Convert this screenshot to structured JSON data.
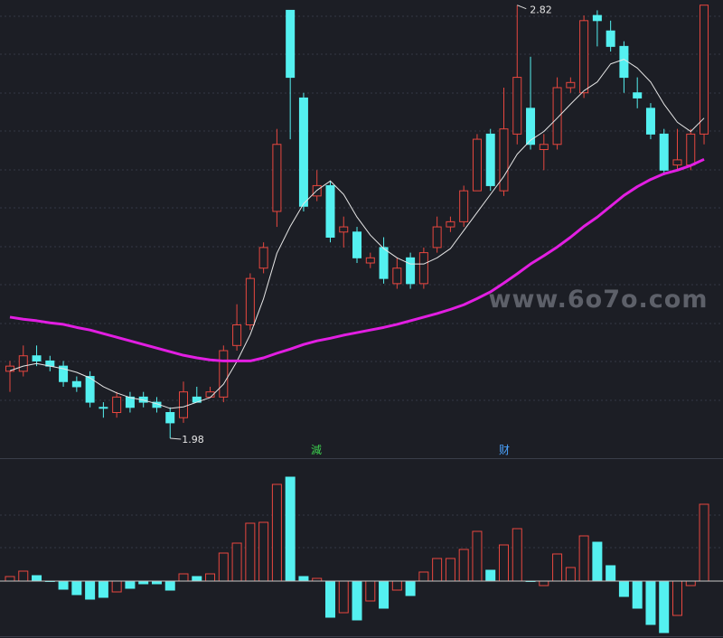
{
  "chart_data": {
    "type": "candlestick",
    "open": [
      2.11,
      2.11,
      2.14,
      2.13,
      2.12,
      2.09,
      2.1,
      2.04,
      2.03,
      2.06,
      2.06,
      2.05,
      2.03,
      2.02,
      2.06,
      2.06,
      2.06,
      2.16,
      2.2,
      2.31,
      2.42,
      2.81,
      2.64,
      2.45,
      2.47,
      2.38,
      2.38,
      2.32,
      2.35,
      2.28,
      2.33,
      2.28,
      2.35,
      2.39,
      2.4,
      2.46,
      2.57,
      2.46,
      2.57,
      2.62,
      2.54,
      2.55,
      2.66,
      2.65,
      2.8,
      2.77,
      2.74,
      2.65,
      2.62,
      2.57,
      2.51,
      2.51,
      2.57
    ],
    "high": [
      2.13,
      2.16,
      2.16,
      2.14,
      2.13,
      2.1,
      2.11,
      2.05,
      2.07,
      2.07,
      2.07,
      2.06,
      2.04,
      2.09,
      2.08,
      2.08,
      2.16,
      2.24,
      2.3,
      2.36,
      2.58,
      2.81,
      2.65,
      2.5,
      2.48,
      2.41,
      2.39,
      2.34,
      2.37,
      2.33,
      2.34,
      2.35,
      2.41,
      2.41,
      2.47,
      2.57,
      2.58,
      2.66,
      2.82,
      2.72,
      2.57,
      2.68,
      2.68,
      2.8,
      2.81,
      2.79,
      2.75,
      2.68,
      2.63,
      2.58,
      2.58,
      2.58,
      2.82
    ],
    "low": [
      2.07,
      2.1,
      2.12,
      2.11,
      2.08,
      2.07,
      2.04,
      2.02,
      2.02,
      2.03,
      2.04,
      2.03,
      1.98,
      2.01,
      2.05,
      2.06,
      2.05,
      2.15,
      2.19,
      2.3,
      2.39,
      2.56,
      2.42,
      2.44,
      2.36,
      2.35,
      2.32,
      2.31,
      2.28,
      2.27,
      2.27,
      2.27,
      2.34,
      2.38,
      2.39,
      2.46,
      2.46,
      2.45,
      2.55,
      2.54,
      2.5,
      2.54,
      2.65,
      2.64,
      2.74,
      2.73,
      2.65,
      2.62,
      2.56,
      2.49,
      2.5,
      2.5,
      2.55
    ],
    "close": [
      2.12,
      2.14,
      2.13,
      2.12,
      2.09,
      2.08,
      2.05,
      2.04,
      2.06,
      2.04,
      2.05,
      2.04,
      2.01,
      2.07,
      2.05,
      2.07,
      2.15,
      2.2,
      2.29,
      2.35,
      2.55,
      2.68,
      2.43,
      2.47,
      2.37,
      2.39,
      2.33,
      2.33,
      2.29,
      2.31,
      2.28,
      2.34,
      2.39,
      2.4,
      2.46,
      2.56,
      2.47,
      2.58,
      2.68,
      2.55,
      2.55,
      2.66,
      2.67,
      2.79,
      2.79,
      2.74,
      2.68,
      2.64,
      2.57,
      2.5,
      2.52,
      2.57,
      2.82
    ],
    "up_color": "#e8473f",
    "down_color": "#54f0f0",
    "ylim": [
      1.945,
      2.83
    ],
    "lines": [
      {
        "color": "#e6e6e6",
        "width": 1,
        "values": [
          2.111,
          2.12,
          2.125,
          2.12,
          2.115,
          2.108,
          2.097,
          2.08,
          2.068,
          2.059,
          2.054,
          2.047,
          2.038,
          2.041,
          2.05,
          2.059,
          2.085,
          2.129,
          2.181,
          2.251,
          2.339,
          2.391,
          2.435,
          2.461,
          2.479,
          2.453,
          2.409,
          2.374,
          2.348,
          2.33,
          2.318,
          2.318,
          2.33,
          2.348,
          2.383,
          2.418,
          2.453,
          2.488,
          2.531,
          2.558,
          2.575,
          2.601,
          2.628,
          2.654,
          2.671,
          2.706,
          2.715,
          2.698,
          2.671,
          2.628,
          2.593,
          2.575,
          2.601
        ]
      },
      {
        "color": "#e21ee2",
        "width": 3,
        "values": [
          2.215,
          2.211,
          2.208,
          2.204,
          2.201,
          2.195,
          2.19,
          2.183,
          2.176,
          2.169,
          2.162,
          2.155,
          2.148,
          2.141,
          2.136,
          2.132,
          2.13,
          2.13,
          2.13,
          2.136,
          2.145,
          2.153,
          2.162,
          2.169,
          2.174,
          2.18,
          2.185,
          2.19,
          2.195,
          2.201,
          2.208,
          2.215,
          2.222,
          2.23,
          2.239,
          2.251,
          2.264,
          2.281,
          2.299,
          2.318,
          2.334,
          2.351,
          2.37,
          2.391,
          2.409,
          2.43,
          2.451,
          2.468,
          2.482,
          2.493,
          2.5,
          2.509,
          2.521
        ]
      }
    ],
    "annotations": {
      "high": 2.82,
      "low": 1.98
    },
    "markers": [
      {
        "label": "減",
        "color": "#3ccf4e"
      },
      {
        "label": "财",
        "color": "#4aa3ff"
      }
    ],
    "watermark": "www.6o7o.com",
    "indicator": {
      "type": "bar",
      "ylim": [
        -63,
        135
      ],
      "values": [
        5,
        11,
        6,
        0,
        -9,
        -15,
        -20,
        -18,
        -12,
        -8,
        -3,
        -3,
        -10,
        8,
        5,
        8,
        31,
        42,
        64,
        65,
        107,
        115,
        5,
        3,
        -40,
        -35,
        -43,
        -22,
        -30,
        -10,
        -16,
        10,
        25,
        25,
        35,
        55,
        12,
        40,
        58,
        0,
        -5,
        30,
        15,
        50,
        43,
        17,
        -17,
        -30,
        -48,
        -57,
        -38,
        -5,
        85
      ]
    }
  }
}
